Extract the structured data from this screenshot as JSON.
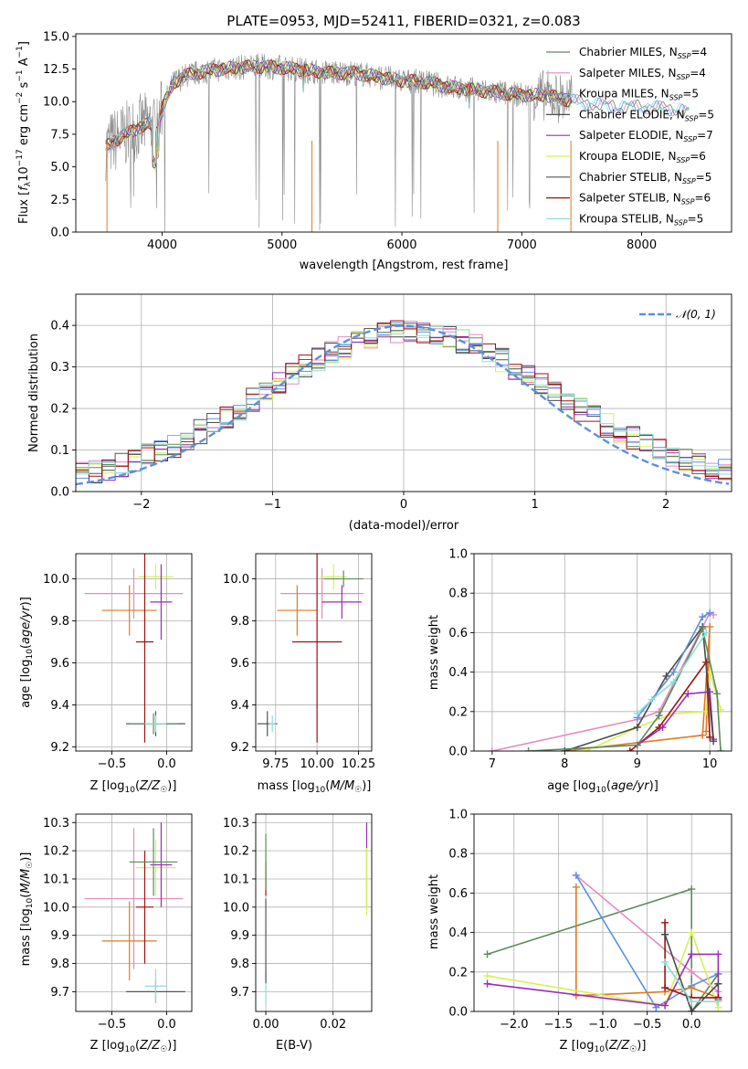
{
  "colors": {
    "Chabrier MILES": "#5b8c5a",
    "Salpeter MILES": "#e48ac2",
    "Kroupa MILES": "#5b8fe0",
    "Chabrier ELODIE": "#4a4a4a",
    "Salpeter ELODIE": "#9a2cb8",
    "Kroupa ELODIE": "#d8f055",
    "Chabrier STELIB": "#555555",
    "Salpeter STELIB": "#a01010",
    "Kroupa STELIB": "#8edcdc",
    "orange": "#e07a22",
    "data": "#8a8a8a",
    "gaussian": "#5b8fe0"
  },
  "chart_data": [
    {
      "id": "spectrum",
      "type": "line",
      "title": "PLATE=0953, MJD=52411, FIBERID=0321, z=0.083",
      "xlabel": "wavelength [Angstrom, rest frame]",
      "ylabel": "Flux [f_λ 10^-17 erg cm^-2 s^-1 A^-1]",
      "xlim": [
        3280,
        8750
      ],
      "ylim": [
        0,
        15.2
      ],
      "xticks": [
        "4000",
        "5000",
        "6000",
        "7000",
        "8000"
      ],
      "yticks": [
        "0.0",
        "2.5",
        "5.0",
        "7.5",
        "10.0",
        "12.5",
        "15.0"
      ],
      "grid": false,
      "legend": [
        {
          "name": "Chabrier MILES, N_SSP=4",
          "color": "#5b8c5a"
        },
        {
          "name": "Salpeter MILES, N_SSP=4",
          "color": "#e48ac2"
        },
        {
          "name": "Kroupa MILES, N_SSP=5",
          "color": "#5b8fe0"
        },
        {
          "name": "Chabrier ELODIE, N_SSP=5",
          "color": "#4a4a4a"
        },
        {
          "name": "Salpeter ELODIE, N_SSP=7",
          "color": "#9a2cb8"
        },
        {
          "name": "Kroupa ELODIE, N_SSP=6",
          "color": "#d8f055"
        },
        {
          "name": "Chabrier STELIB, N_SSP=5",
          "color": "#555555"
        },
        {
          "name": "Salpeter STELIB, N_SSP=6",
          "color": "#a01010"
        },
        {
          "name": "Kroupa STELIB, N_SSP=5",
          "color": "#8edcdc"
        }
      ],
      "continuum": [
        [
          3530,
          6.5
        ],
        [
          3600,
          7.0
        ],
        [
          3700,
          7.5
        ],
        [
          3800,
          8.0
        ],
        [
          3900,
          8.3
        ],
        [
          3950,
          7.6
        ],
        [
          4000,
          9.5
        ],
        [
          4100,
          11.5
        ],
        [
          4200,
          12.0
        ],
        [
          4300,
          12.2
        ],
        [
          4400,
          12.4
        ],
        [
          4600,
          12.6
        ],
        [
          4800,
          12.7
        ],
        [
          5000,
          12.6
        ],
        [
          5200,
          12.4
        ],
        [
          5400,
          12.2
        ],
        [
          5600,
          12.2
        ],
        [
          5800,
          11.9
        ],
        [
          6000,
          11.6
        ],
        [
          6200,
          11.5
        ],
        [
          6400,
          11.1
        ],
        [
          6600,
          10.9
        ],
        [
          6800,
          10.7
        ],
        [
          7000,
          10.5
        ],
        [
          7200,
          10.5
        ],
        [
          7400,
          10.1
        ],
        [
          7600,
          9.8
        ],
        [
          7800,
          9.6
        ],
        [
          8000,
          9.6
        ],
        [
          8200,
          9.5
        ],
        [
          8400,
          9.2
        ]
      ],
      "data_range": [
        3530,
        7420
      ]
    },
    {
      "id": "residuals",
      "type": "line",
      "xlabel": "(data-model)/error",
      "ylabel": "Normed distribution",
      "xlim": [
        -2.5,
        2.5
      ],
      "ylim": [
        0,
        0.475
      ],
      "xticks": [
        "−2",
        "−1",
        "0",
        "1",
        "2"
      ],
      "yticks": [
        "0.0",
        "0.1",
        "0.2",
        "0.3",
        "0.4"
      ],
      "grid": true,
      "legend": [
        {
          "name": "𝒩(0, 1)",
          "color": "#5b8fe0"
        }
      ]
    },
    {
      "id": "age_vs_Z",
      "type": "scatter",
      "xlabel": "Z [log10(Z/Z☉)]",
      "ylabel": "age [log10(age/yr)]",
      "xlim": [
        -0.83,
        0.23
      ],
      "ylim": [
        9.18,
        10.12
      ],
      "xticks": [
        "−0.5",
        "0.0"
      ],
      "yticks": [
        "9.2",
        "9.4",
        "9.6",
        "9.8",
        "10.0"
      ],
      "grid": true,
      "points": [
        {
          "x": -0.3,
          "y": 9.93,
          "xerr": 0.45,
          "yerr": 0.12,
          "c": "#e48ac2"
        },
        {
          "x": -0.34,
          "y": 9.85,
          "xerr": 0.25,
          "yerr": 0.12,
          "c": "#e07a22"
        },
        {
          "x": -0.1,
          "y": 10.01,
          "xerr": 0.16,
          "yerr": 0.06,
          "c": "#d8f055"
        },
        {
          "x": -0.2,
          "y": 9.7,
          "xerr": 0.08,
          "yerr": 0.48,
          "c": "#a01010"
        },
        {
          "x": -0.05,
          "y": 9.89,
          "xerr": 0.1,
          "yerr": 0.18,
          "c": "#9a2cb8"
        },
        {
          "x": -0.1,
          "y": 9.31,
          "xerr": 0.27,
          "yerr": 0.06,
          "c": "#555555"
        },
        {
          "x": -0.12,
          "y": 9.31,
          "xerr": 0.22,
          "yerr": 0.05,
          "c": "#5b8c5a"
        },
        {
          "x": -0.1,
          "y": 9.31,
          "xerr": 0.1,
          "yerr": 0.04,
          "c": "#8edcdc"
        }
      ]
    },
    {
      "id": "age_vs_mass",
      "type": "scatter",
      "xlabel": "mass [log10(M/M☉)]",
      "ylabel": "",
      "xlim": [
        9.63,
        10.33
      ],
      "ylim": [
        9.18,
        10.12
      ],
      "xticks": [
        "9.75",
        "10.00",
        "10.25"
      ],
      "yticks": [
        "9.2",
        "9.4",
        "9.6",
        "9.8",
        "10.0"
      ],
      "grid": true,
      "points": [
        {
          "x": 10.03,
          "y": 9.93,
          "xerr": 0.25,
          "yerr": 0.12,
          "c": "#e48ac2"
        },
        {
          "x": 9.88,
          "y": 9.85,
          "xerr": 0.12,
          "yerr": 0.12,
          "c": "#e07a22"
        },
        {
          "x": 10.1,
          "y": 10.01,
          "xerr": 0.08,
          "yerr": 0.06,
          "c": "#d8f055"
        },
        {
          "x": 10.0,
          "y": 9.7,
          "xerr": 0.15,
          "yerr": 0.48,
          "c": "#a01010"
        },
        {
          "x": 10.15,
          "y": 9.89,
          "xerr": 0.12,
          "yerr": 0.08,
          "c": "#9a2cb8"
        },
        {
          "x": 9.7,
          "y": 9.31,
          "xerr": 0.06,
          "yerr": 0.06,
          "c": "#555555"
        },
        {
          "x": 10.16,
          "y": 10.0,
          "xerr": 0.12,
          "yerr": 0.04,
          "c": "#5b8c5a"
        },
        {
          "x": 9.73,
          "y": 9.31,
          "xerr": 0.02,
          "yerr": 0.04,
          "c": "#8edcdc"
        }
      ]
    },
    {
      "id": "weight_vs_age",
      "type": "line",
      "xlabel": "age [log10(age/yr)]",
      "ylabel": "mass weight",
      "xlim": [
        6.75,
        10.3
      ],
      "ylim": [
        0,
        1.0
      ],
      "xticks": [
        "7",
        "8",
        "9",
        "10"
      ],
      "yticks": [
        "0.0",
        "0.2",
        "0.4",
        "0.6",
        "0.8",
        "1.0"
      ],
      "grid": true,
      "series": [
        {
          "c": "#e48ac2",
          "pts": [
            [
              7.0,
              0.0
            ],
            [
              9.0,
              0.16
            ],
            [
              9.3,
              0.2
            ],
            [
              10.0,
              0.7
            ],
            [
              10.05,
              0.69
            ]
          ]
        },
        {
          "c": "#e07a22",
          "pts": [
            [
              8.0,
              0.0
            ],
            [
              9.9,
              0.08
            ],
            [
              10.0,
              0.63
            ],
            [
              9.95,
              0.1
            ]
          ]
        },
        {
          "c": "#d8f055",
          "pts": [
            [
              8.3,
              0.0
            ],
            [
              9.0,
              0.12
            ],
            [
              9.5,
              0.19
            ],
            [
              9.95,
              0.2
            ],
            [
              10.0,
              0.4
            ],
            [
              10.15,
              0.21
            ]
          ]
        },
        {
          "c": "#a01010",
          "pts": [
            [
              8.9,
              0.0
            ],
            [
              9.3,
              0.12
            ],
            [
              9.95,
              0.45
            ],
            [
              10.0,
              0.07
            ]
          ]
        },
        {
          "c": "#9a2cb8",
          "pts": [
            [
              9.0,
              0.03
            ],
            [
              9.35,
              0.12
            ],
            [
              9.7,
              0.29
            ],
            [
              10.0,
              0.3
            ],
            [
              10.05,
              0.06
            ]
          ]
        },
        {
          "c": "#4a4a4a",
          "pts": [
            [
              8.0,
              0.0
            ],
            [
              9.0,
              0.12
            ],
            [
              9.4,
              0.38
            ],
            [
              9.9,
              0.63
            ],
            [
              10.05,
              0.05
            ]
          ]
        },
        {
          "c": "#5b8c5a",
          "pts": [
            [
              7.5,
              0.0
            ],
            [
              9.0,
              0.03
            ],
            [
              9.3,
              0.18
            ],
            [
              9.9,
              0.62
            ],
            [
              10.1,
              0.29
            ],
            [
              10.15,
              0.0
            ]
          ]
        },
        {
          "c": "#5b8fe0",
          "pts": [
            [
              9.0,
              0.17
            ],
            [
              9.5,
              0.4
            ],
            [
              9.9,
              0.68
            ],
            [
              10.0,
              0.7
            ]
          ]
        },
        {
          "c": "#8edcdc",
          "pts": [
            [
              9.0,
              0.19
            ],
            [
              9.2,
              0.26
            ],
            [
              9.5,
              0.35
            ],
            [
              9.95,
              0.6
            ]
          ]
        }
      ]
    },
    {
      "id": "mass_vs_Z",
      "type": "scatter",
      "xlabel": "Z [log10(Z/Z☉)]",
      "ylabel": "mass [log10(M/M☉)]",
      "xlim": [
        -0.83,
        0.23
      ],
      "ylim": [
        9.63,
        10.33
      ],
      "xticks": [
        "−0.5",
        "0.0"
      ],
      "yticks": [
        "9.7",
        "9.8",
        "9.9",
        "10.0",
        "10.1",
        "10.2",
        "10.3"
      ],
      "grid": true,
      "points": [
        {
          "x": -0.3,
          "y": 10.03,
          "xerr": 0.45,
          "yerr": 0.25,
          "c": "#e48ac2"
        },
        {
          "x": -0.34,
          "y": 9.88,
          "xerr": 0.25,
          "yerr": 0.14,
          "c": "#e07a22"
        },
        {
          "x": -0.1,
          "y": 10.14,
          "xerr": 0.18,
          "yerr": 0.1,
          "c": "#d8f055"
        },
        {
          "x": -0.2,
          "y": 10.0,
          "xerr": 0.08,
          "yerr": 0.2,
          "c": "#a01010"
        },
        {
          "x": -0.05,
          "y": 10.15,
          "xerr": 0.1,
          "yerr": 0.15,
          "c": "#9a2cb8"
        },
        {
          "x": -0.1,
          "y": 9.7,
          "xerr": 0.27,
          "yerr": 0.04,
          "c": "#555555"
        },
        {
          "x": -0.12,
          "y": 10.16,
          "xerr": 0.22,
          "yerr": 0.12,
          "c": "#5b8c5a"
        },
        {
          "x": -0.1,
          "y": 9.72,
          "xerr": 0.1,
          "yerr": 0.06,
          "c": "#8edcdc"
        }
      ]
    },
    {
      "id": "mass_vs_EBV",
      "type": "scatter",
      "xlabel": "E(B-V)",
      "ylabel": "",
      "xlim": [
        -0.003,
        0.0315
      ],
      "ylim": [
        9.63,
        10.33
      ],
      "xticks": [
        "0.00",
        "0.02"
      ],
      "yticks": [
        "9.7",
        "9.8",
        "9.9",
        "10.0",
        "10.1",
        "10.2",
        "10.3"
      ],
      "grid": true,
      "points": [
        {
          "x": 0.03,
          "y": 10.15,
          "xerr": 0,
          "yerr": 0.15,
          "c": "#9a2cb8"
        },
        {
          "x": 0.03,
          "y": 10.09,
          "xerr": 0,
          "yerr": 0.12,
          "c": "#d8f055"
        },
        {
          "x": 0.0,
          "y": 10.1,
          "xerr": 0,
          "yerr": 0.06,
          "c": "#a01010"
        },
        {
          "x": 0.0,
          "y": 10.16,
          "xerr": 0,
          "yerr": 0.1,
          "c": "#5b8c5a"
        },
        {
          "x": 0.0,
          "y": 9.72,
          "xerr": 0,
          "yerr": 0.06,
          "c": "#8edcdc"
        },
        {
          "x": 0.0,
          "y": 9.88,
          "xerr": 0,
          "yerr": 0.15,
          "c": "#555555"
        }
      ]
    },
    {
      "id": "weight_vs_Z",
      "type": "line",
      "xlabel": "Z [log10(Z/Z☉)]",
      "ylabel": "mass weight",
      "xlim": [
        -2.45,
        0.45
      ],
      "ylim": [
        0,
        1.0
      ],
      "xticks": [
        "−2.0",
        "−1.5",
        "−1.0",
        "−0.5",
        "0.0"
      ],
      "yticks": [
        "0.0",
        "0.2",
        "0.4",
        "0.6",
        "0.8",
        "1.0"
      ],
      "grid": true,
      "series": [
        {
          "c": "#5b8c5a",
          "pts": [
            [
              -2.3,
              0.29
            ],
            [
              0.0,
              0.62
            ],
            [
              0.0,
              0.0
            ],
            [
              0.3,
              0.19
            ]
          ]
        },
        {
          "c": "#e48ac2",
          "pts": [
            [
              -1.3,
              0.69
            ],
            [
              0.0,
              0.2
            ],
            [
              0.3,
              0.1
            ]
          ]
        },
        {
          "c": "#5b8fe0",
          "pts": [
            [
              -1.3,
              0.69
            ],
            [
              -0.4,
              0.02
            ],
            [
              0.0,
              0.13
            ],
            [
              0.3,
              0.19
            ]
          ]
        },
        {
          "c": "#e07a22",
          "pts": [
            [
              -1.3,
              0.63
            ],
            [
              -1.3,
              0.08
            ],
            [
              -0.3,
              0.1
            ],
            [
              0.0,
              0.12
            ],
            [
              0.3,
              0.07
            ]
          ]
        },
        {
          "c": "#d8f055",
          "pts": [
            [
              -2.3,
              0.18
            ],
            [
              -0.3,
              0.03
            ],
            [
              0.0,
              0.4
            ],
            [
              0.3,
              0.02
            ]
          ]
        },
        {
          "c": "#9a2cb8",
          "pts": [
            [
              -2.3,
              0.14
            ],
            [
              -0.3,
              0.03
            ],
            [
              0.0,
              0.29
            ],
            [
              0.3,
              0.29
            ],
            [
              0.3,
              0.06
            ]
          ]
        },
        {
          "c": "#a01010",
          "pts": [
            [
              -0.3,
              0.45
            ],
            [
              -0.3,
              0.12
            ],
            [
              0.0,
              0.07
            ],
            [
              0.3,
              0.07
            ]
          ]
        },
        {
          "c": "#4a4a4a",
          "pts": [
            [
              -0.3,
              0.39
            ],
            [
              0.0,
              0.0
            ],
            [
              0.3,
              0.14
            ]
          ]
        },
        {
          "c": "#8edcdc",
          "pts": [
            [
              -0.3,
              0.25
            ],
            [
              0.0,
              0.05
            ],
            [
              0.3,
              0.05
            ]
          ]
        }
      ]
    }
  ]
}
